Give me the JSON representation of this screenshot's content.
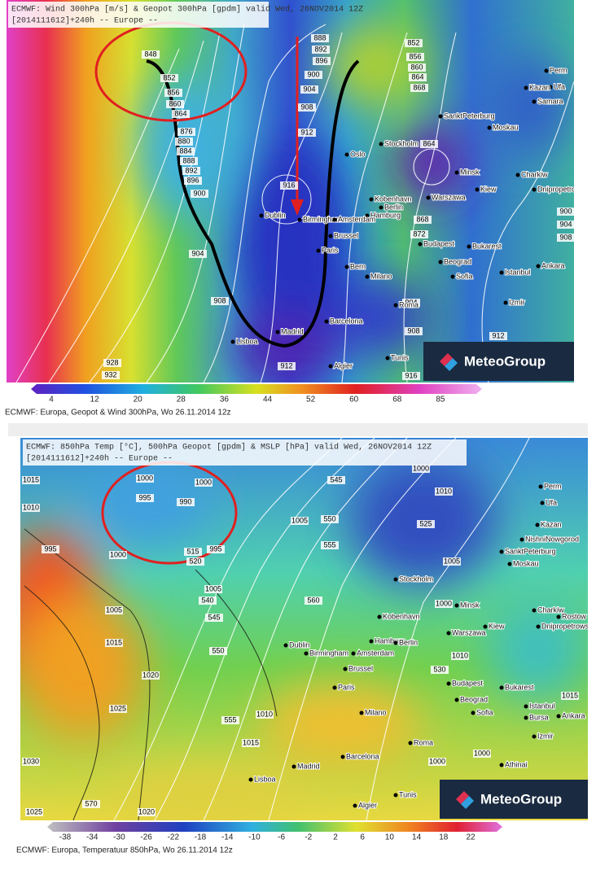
{
  "maps": [
    {
      "header": [
        "ECMWF: Wind 300hPa [m/s] & Geopot 300hPa [gpdm] valid Wed, 26NOV2014 12Z",
        "[2014111612]+240h -- Europe --"
      ],
      "logo": "MeteoGroup",
      "colorbar": [
        4,
        12,
        20,
        28,
        36,
        44,
        52,
        60,
        68,
        85
      ],
      "caption": "ECMWF: Europa, Geopot & Wind 300hPa, Wo 26.11.2014 12z",
      "cities": [
        "Perm",
        "Ufa",
        "Kazan",
        "Samara",
        "Moskau",
        "SanktPeterburg",
        "Stockholm",
        "Oslo",
        "Minsk",
        "Kiew",
        "Charkiw",
        "Dnipropetrowsk",
        "Kobenhavn",
        "Berlin",
        "Warszawa",
        "Hamburg",
        "Dublin",
        "Birmingham",
        "Amsterdam",
        "Brussel",
        "Paris",
        "Bern",
        "Milano",
        "Budapest",
        "Bukarest",
        "Beograd",
        "Sofia",
        "Istanbul",
        "Ankara",
        "Roma",
        "Madrid",
        "Lisboa",
        "Barcelona",
        "Tunis",
        "Algier",
        "Izmir"
      ],
      "contours": [
        848,
        852,
        856,
        860,
        864,
        876,
        880,
        884,
        888,
        892,
        896,
        900,
        904,
        908,
        912,
        916,
        928,
        932,
        888,
        892,
        896,
        900,
        904,
        908,
        912,
        852,
        856,
        860,
        864,
        868,
        864,
        868,
        872,
        908,
        904,
        912,
        900,
        904,
        908,
        916
      ]
    },
    {
      "header": [
        "ECMWF: 850hPa Temp [°C], 500hPa Geopot [gpdm] & MSLP [hPa] valid Wed, 26NOV2014 12Z",
        "[2014111612]+240h -- Europe --"
      ],
      "logo": "MeteoGroup",
      "colorbar": [
        -38,
        -34,
        -30,
        -26,
        -22,
        -18,
        -14,
        -10,
        -6,
        -2,
        2,
        6,
        10,
        14,
        18,
        22
      ],
      "caption": "ECMWF: Europa, Temperatuur 850hPa, Wo 26.11.2014 12z",
      "cities": [
        "Perm",
        "Ufa",
        "Kazan",
        "NishniNowgorod",
        "SanktPeterburg",
        "Moskau",
        "Stockholm",
        "Minsk",
        "Kiew",
        "Charkiw",
        "Rostow",
        "Dnipropetrowsk",
        "Kobenhavn",
        "Warszawa",
        "Hamburg",
        "Berlin",
        "Dublin",
        "Birmingham",
        "Amsterdam",
        "Brussel",
        "Paris",
        "Budapest",
        "Bukarest",
        "Beograd",
        "Milano",
        "Sofia",
        "Istanbul",
        "Bursa",
        "Ankara",
        "Roma",
        "Madrid",
        "Barcelona",
        "Lisboa",
        "Algier",
        "Tunis",
        "Izmir",
        "Athinai"
      ],
      "contours": [
        1015,
        1010,
        995,
        1000,
        1005,
        1015,
        1020,
        1025,
        1030,
        1025,
        570,
        1020,
        1000,
        995,
        990,
        1000,
        515,
        520,
        995,
        1005,
        540,
        545,
        550,
        555,
        1010,
        1015,
        1005,
        545,
        550,
        555,
        560,
        1000,
        1010,
        525,
        1000,
        1005,
        1010,
        530,
        1015,
        1000,
        1000
      ]
    }
  ]
}
